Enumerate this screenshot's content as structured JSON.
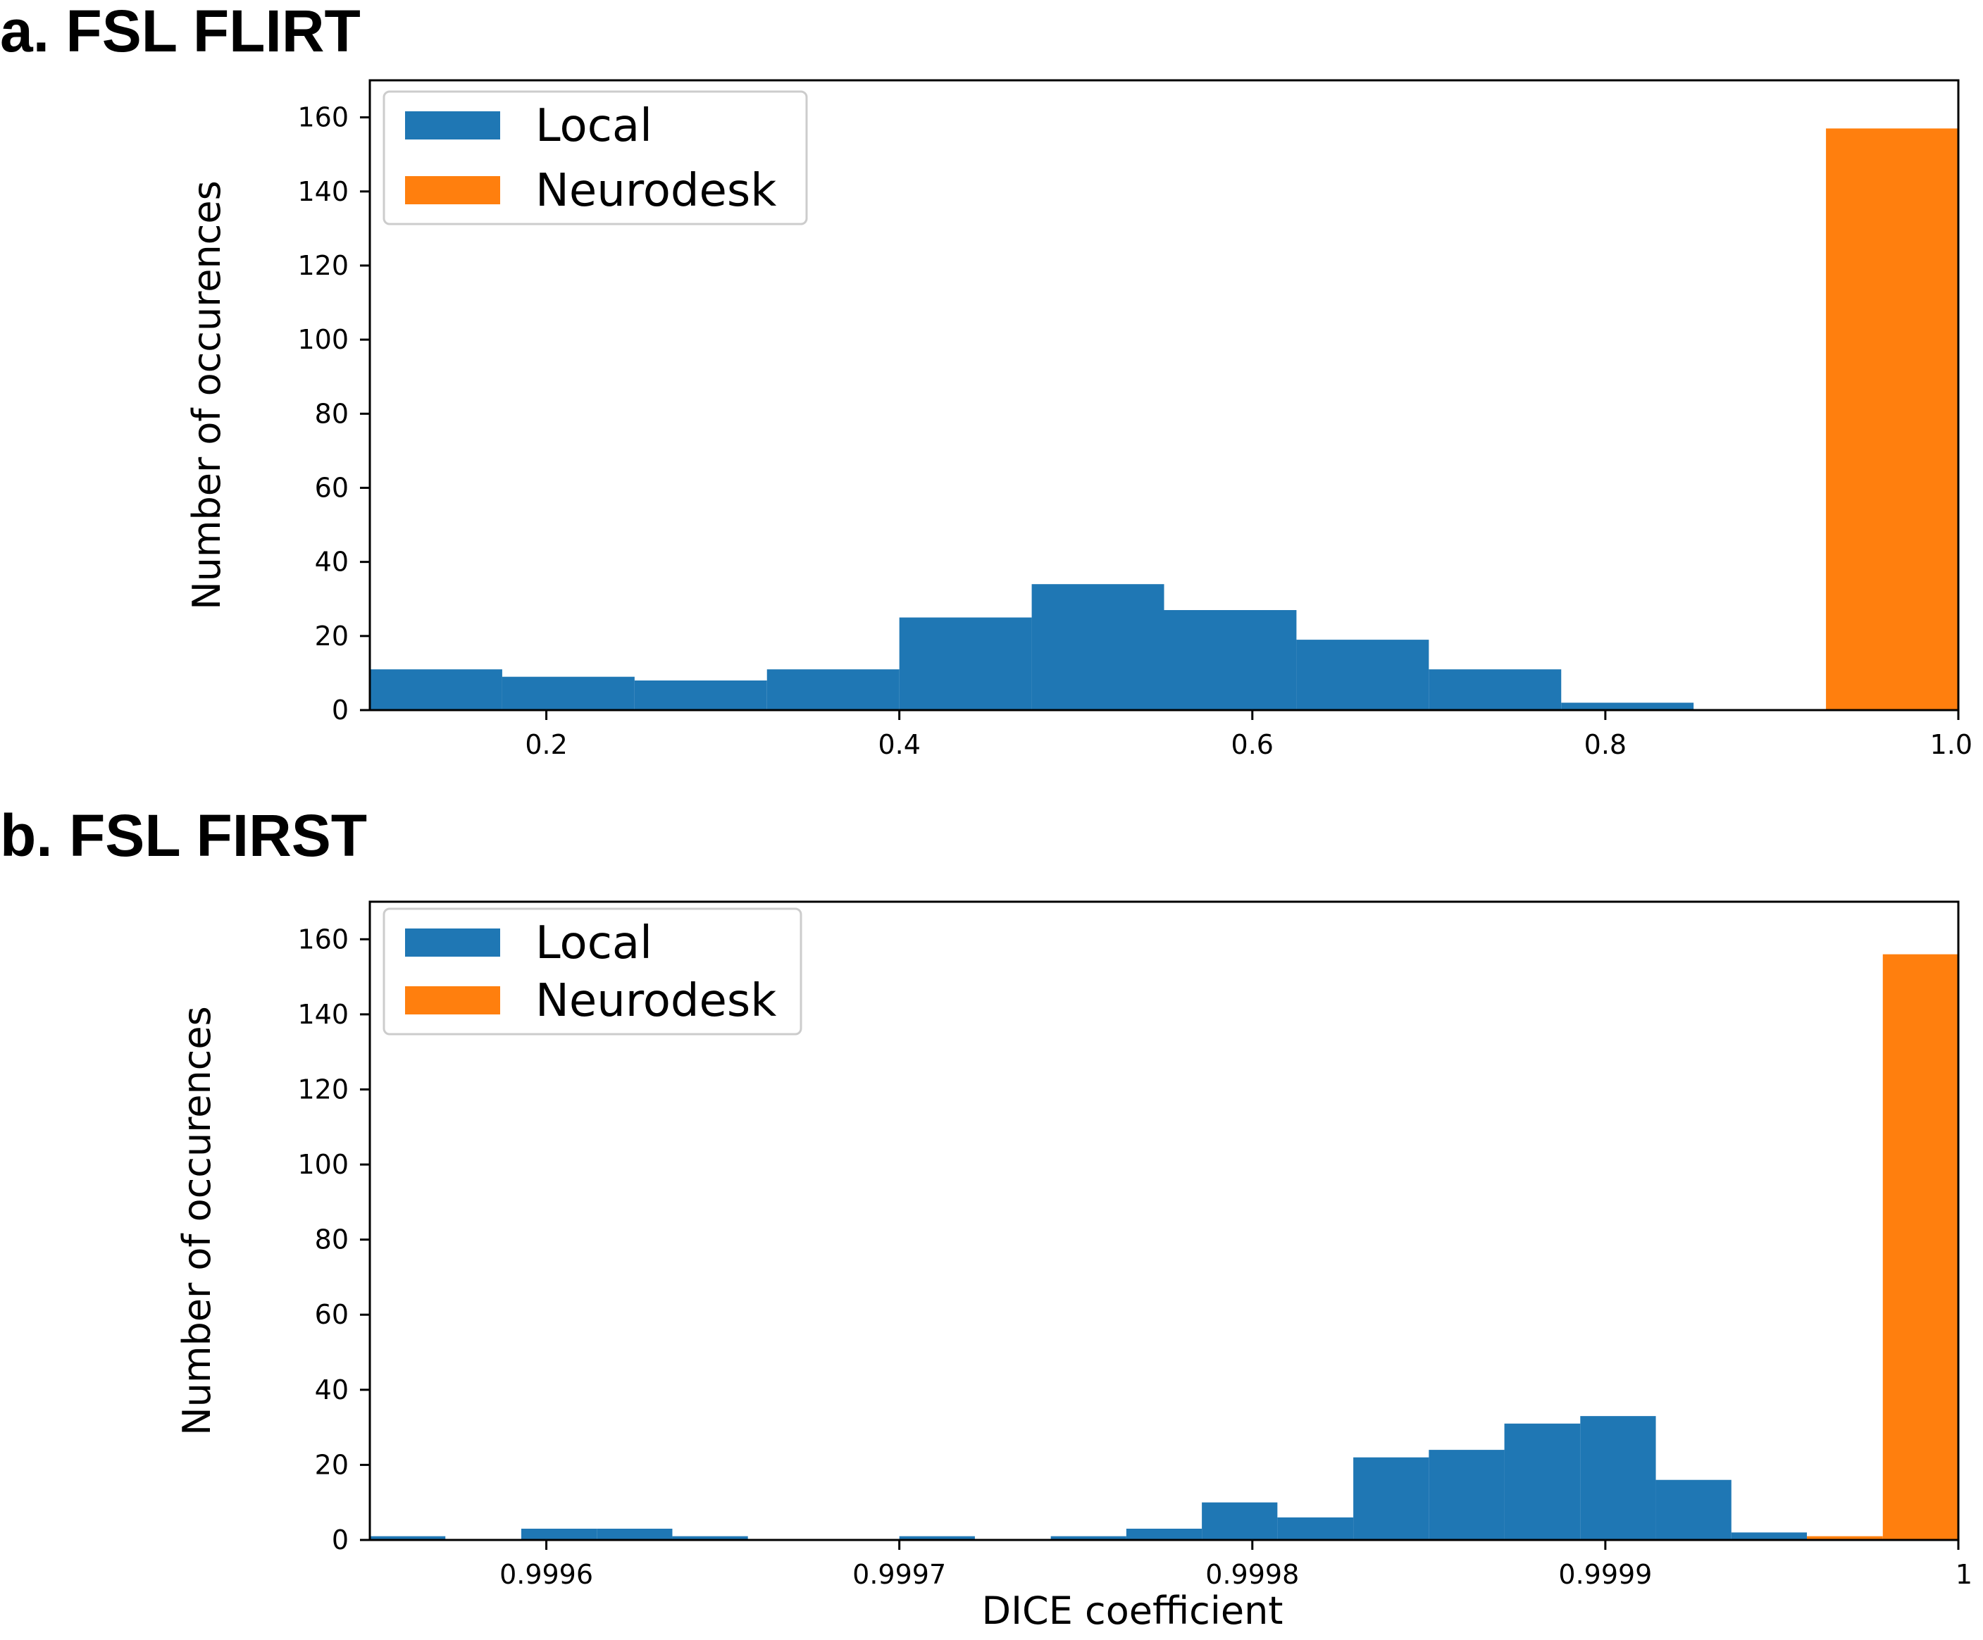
{
  "chart_data": [
    {
      "panel": "a. FSL FLIRT",
      "type": "bar",
      "title": "a. FSL FLIRT",
      "xlabel": "",
      "ylabel": "Number of occurences",
      "xlim": [
        0.1,
        1.0
      ],
      "ylim": [
        0,
        170
      ],
      "xticks": [
        0.2,
        0.4,
        0.6,
        0.8,
        1.0
      ],
      "xtick_labels": [
        "0.2",
        "0.4",
        "0.6",
        "0.8",
        "1.0"
      ],
      "yticks": [
        0,
        20,
        40,
        60,
        80,
        100,
        120,
        140,
        160
      ],
      "ytick_labels": [
        "0",
        "20",
        "40",
        "60",
        "80",
        "100",
        "120",
        "140",
        "160"
      ],
      "grid": false,
      "legend": "top-left",
      "series": [
        {
          "name": "Local",
          "color": "#1f77b4",
          "bins": [
            {
              "x0": 0.1,
              "x1": 0.175,
              "count": 11
            },
            {
              "x0": 0.175,
              "x1": 0.25,
              "count": 9
            },
            {
              "x0": 0.25,
              "x1": 0.325,
              "count": 8
            },
            {
              "x0": 0.325,
              "x1": 0.4,
              "count": 11
            },
            {
              "x0": 0.4,
              "x1": 0.475,
              "count": 25
            },
            {
              "x0": 0.475,
              "x1": 0.55,
              "count": 34
            },
            {
              "x0": 0.55,
              "x1": 0.625,
              "count": 27
            },
            {
              "x0": 0.625,
              "x1": 0.7,
              "count": 19
            },
            {
              "x0": 0.7,
              "x1": 0.775,
              "count": 11
            },
            {
              "x0": 0.775,
              "x1": 0.85,
              "count": 2
            }
          ]
        },
        {
          "name": "Neurodesk",
          "color": "#ff7f0e",
          "bins": [
            {
              "x0": 0.925,
              "x1": 1.0,
              "count": 157
            }
          ]
        }
      ]
    },
    {
      "panel": "b. FSL FIRST",
      "type": "bar",
      "title": "b. FSL FIRST",
      "xlabel": "DICE coefficient",
      "ylabel": "Number of occurences",
      "xlim": [
        0.99955,
        1.0
      ],
      "ylim": [
        0,
        170
      ],
      "xticks": [
        0.9996,
        0.9997,
        0.9998,
        0.9999,
        1.0
      ],
      "xtick_labels": [
        "0.9996",
        "0.9997",
        "0.9998",
        "0.9999",
        "1"
      ],
      "yticks": [
        0,
        20,
        40,
        60,
        80,
        100,
        120,
        140,
        160
      ],
      "ytick_labels": [
        "0",
        "20",
        "40",
        "60",
        "80",
        "100",
        "120",
        "140",
        "160"
      ],
      "grid": false,
      "legend": "top-left",
      "series": [
        {
          "name": "Local",
          "color": "#1f77b4",
          "bins": [
            {
              "x0": 0.99955,
              "x1": 0.9995714,
              "count": 1
            },
            {
              "x0": 0.9995714,
              "x1": 0.9995929,
              "count": 0
            },
            {
              "x0": 0.9995929,
              "x1": 0.9996143,
              "count": 3
            },
            {
              "x0": 0.9996143,
              "x1": 0.9996357,
              "count": 3
            },
            {
              "x0": 0.9996357,
              "x1": 0.9996571,
              "count": 1
            },
            {
              "x0": 0.9996571,
              "x1": 0.9996786,
              "count": 0
            },
            {
              "x0": 0.9996786,
              "x1": 0.9997,
              "count": 0
            },
            {
              "x0": 0.9997,
              "x1": 0.9997214,
              "count": 1
            },
            {
              "x0": 0.9997214,
              "x1": 0.9997429,
              "count": 0
            },
            {
              "x0": 0.9997429,
              "x1": 0.9997643,
              "count": 1
            },
            {
              "x0": 0.9997643,
              "x1": 0.9997857,
              "count": 3
            },
            {
              "x0": 0.9997857,
              "x1": 0.9998071,
              "count": 10
            },
            {
              "x0": 0.9998071,
              "x1": 0.9998286,
              "count": 6
            },
            {
              "x0": 0.9998286,
              "x1": 0.99985,
              "count": 22
            },
            {
              "x0": 0.99985,
              "x1": 0.9998714,
              "count": 24
            },
            {
              "x0": 0.9998714,
              "x1": 0.9998929,
              "count": 31
            },
            {
              "x0": 0.9998929,
              "x1": 0.9999143,
              "count": 33
            },
            {
              "x0": 0.9999143,
              "x1": 0.9999357,
              "count": 16
            },
            {
              "x0": 0.9999357,
              "x1": 0.9999571,
              "count": 2
            }
          ]
        },
        {
          "name": "Neurodesk",
          "color": "#ff7f0e",
          "bins": [
            {
              "x0": 0.9999571,
              "x1": 0.9999786,
              "count": 1
            },
            {
              "x0": 0.9999786,
              "x1": 1.0,
              "count": 156
            }
          ]
        }
      ]
    }
  ]
}
